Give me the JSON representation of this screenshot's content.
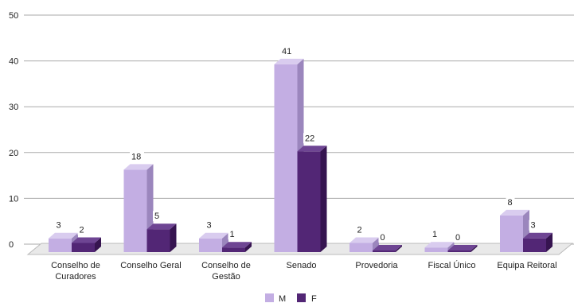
{
  "chart_data": {
    "type": "bar",
    "categories": [
      "Conselho de Curadores",
      "Conselho Geral",
      "Conselho de Gestão",
      "Senado",
      "Provedoria",
      "Fiscal Único",
      "Equipa Reitoral"
    ],
    "category_lines": [
      [
        "Conselho de",
        "Curadores"
      ],
      [
        "Conselho Geral"
      ],
      [
        "Conselho de",
        "Gestão"
      ],
      [
        "Senado"
      ],
      [
        "Provedoria"
      ],
      [
        "Fiscal Único"
      ],
      [
        "Equipa Reitoral"
      ]
    ],
    "series": [
      {
        "name": "M",
        "values": [
          3,
          18,
          3,
          41,
          2,
          1,
          8
        ]
      },
      {
        "name": "F",
        "values": [
          2,
          5,
          1,
          22,
          0,
          0,
          3
        ]
      }
    ],
    "ylim": [
      0,
      50
    ],
    "yticks": [
      0,
      10,
      20,
      30,
      40,
      50
    ],
    "grid": true,
    "legend_position": "bottom",
    "data_labels": true,
    "three_d": true
  },
  "colors": {
    "M_front": "#c3aee3",
    "M_top": "#d9ccef",
    "M_side": "#9b86bd",
    "F_front": "#522675",
    "F_top": "#6e4593",
    "F_side": "#361450",
    "grid": "#aaaaaa",
    "floor": "#e9e9e9",
    "floor_edge": "#bbbbbb"
  }
}
